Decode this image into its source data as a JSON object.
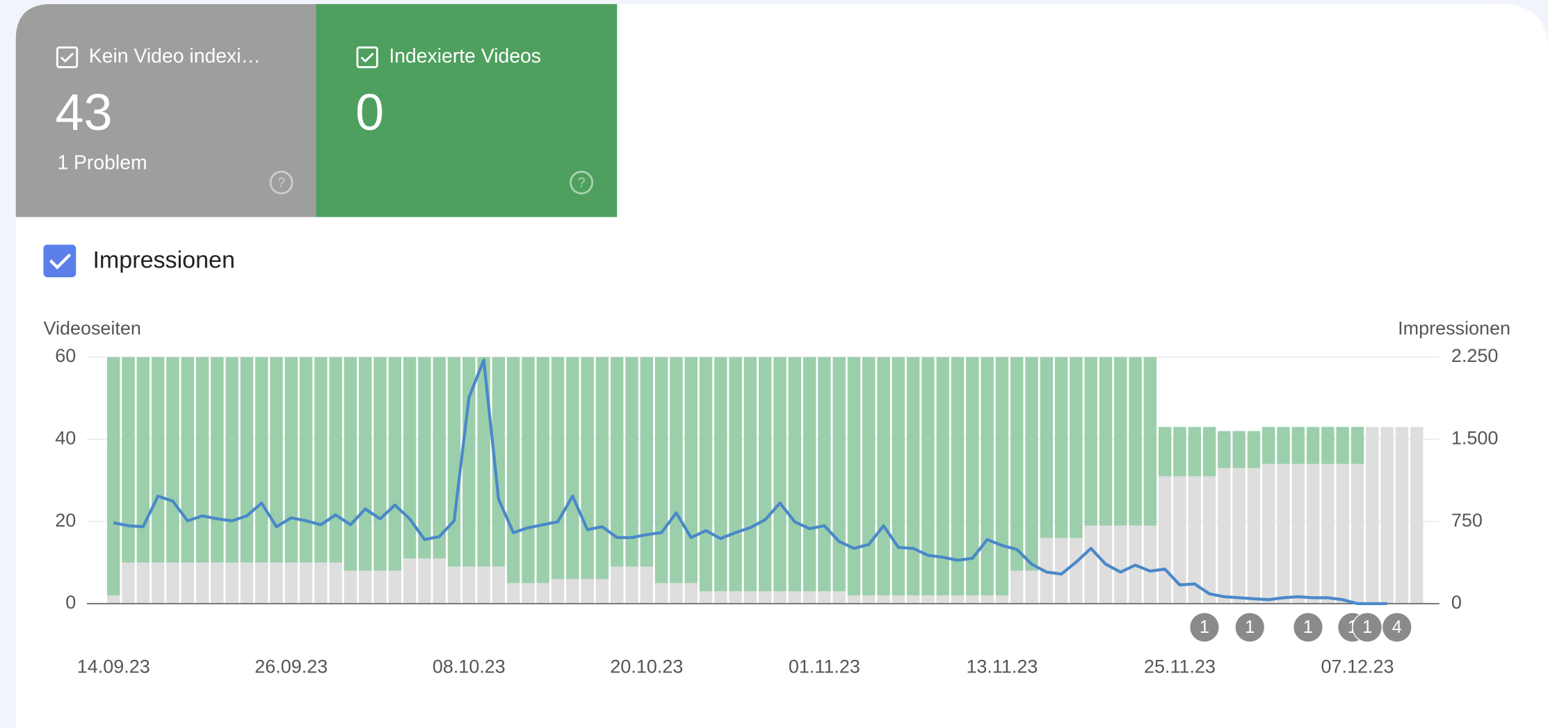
{
  "cards": [
    {
      "value": 43,
      "subtitle": "1 Problem"
    },
    {
      "value": 0
    }
  ],
  "chart_data": {
    "type": "bar",
    "stacked": true,
    "ylabel": "Videoseiten",
    "y2label": "Impressionen",
    "categories": [
      "14.09.23",
      null,
      null,
      null,
      null,
      null,
      null,
      null,
      null,
      null,
      null,
      null,
      "26.09.23",
      null,
      null,
      null,
      null,
      null,
      null,
      null,
      null,
      null,
      null,
      null,
      "08.10.23",
      null,
      null,
      null,
      null,
      null,
      null,
      null,
      null,
      null,
      null,
      null,
      "20.10.23",
      null,
      null,
      null,
      null,
      null,
      null,
      null,
      null,
      null,
      null,
      null,
      "01.11.23",
      null,
      null,
      null,
      null,
      null,
      null,
      null,
      null,
      null,
      null,
      null,
      "13.11.23",
      null,
      null,
      null,
      null,
      null,
      null,
      null,
      null,
      null,
      null,
      null,
      "25.11.23",
      null,
      null,
      null,
      null,
      null,
      null,
      null,
      null,
      null,
      null,
      null,
      "07.12.23",
      null,
      null,
      null,
      null
    ],
    "series": [
      {
        "name": "Kein Video indexi…",
        "color": "#dedede",
        "values": [
          2,
          10,
          10,
          10,
          10,
          10,
          10,
          10,
          10,
          10,
          10,
          10,
          10,
          10,
          10,
          10,
          8,
          8,
          8,
          8,
          11,
          11,
          11,
          9,
          9,
          9,
          9,
          5,
          5,
          5,
          6,
          6,
          6,
          6,
          9,
          9,
          9,
          5,
          5,
          5,
          3,
          3,
          3,
          3,
          3,
          3,
          3,
          3,
          3,
          3,
          2,
          2,
          2,
          2,
          2,
          2,
          2,
          2,
          2,
          2,
          2,
          8,
          8,
          16,
          16,
          16,
          19,
          19,
          19,
          19,
          19,
          31,
          31,
          31,
          31,
          33,
          33,
          33,
          34,
          34,
          34,
          34,
          34,
          34,
          34,
          43,
          43,
          43,
          43
        ]
      },
      {
        "name": "Indexierte Videos",
        "color": "#9bcfab",
        "values": [
          58,
          50,
          50,
          50,
          50,
          50,
          50,
          50,
          50,
          50,
          50,
          50,
          50,
          50,
          50,
          50,
          52,
          52,
          52,
          52,
          49,
          49,
          49,
          51,
          51,
          51,
          51,
          55,
          55,
          55,
          54,
          54,
          54,
          54,
          51,
          51,
          51,
          55,
          55,
          55,
          57,
          57,
          57,
          57,
          57,
          57,
          57,
          57,
          57,
          57,
          58,
          58,
          58,
          58,
          58,
          58,
          58,
          58,
          58,
          58,
          58,
          52,
          52,
          44,
          44,
          44,
          41,
          41,
          41,
          41,
          41,
          12,
          12,
          12,
          12,
          9,
          9,
          9,
          9,
          9,
          9,
          9,
          9,
          9,
          9,
          0,
          0,
          0,
          0
        ]
      },
      {
        "name": "Impressionen",
        "color": "#4a88c9",
        "type": "line",
        "axis": "y2",
        "values": [
          738,
          711,
          702,
          981,
          936,
          756,
          801,
          774,
          756,
          801,
          918,
          702,
          783,
          756,
          720,
          810,
          720,
          864,
          774,
          900,
          774,
          585,
          612,
          756,
          1881,
          2223,
          954,
          648,
          693,
          720,
          747,
          981,
          675,
          702,
          603,
          603,
          630,
          648,
          828,
          603,
          666,
          594,
          648,
          693,
          765,
          918,
          747,
          684,
          711,
          567,
          504,
          540,
          711,
          513,
          504,
          441,
          423,
          396,
          414,
          585,
          531,
          495,
          360,
          288,
          270,
          378,
          504,
          360,
          288,
          351,
          297,
          315,
          171,
          180,
          90,
          63,
          54,
          45,
          36,
          54,
          63,
          54,
          54,
          36,
          0,
          0,
          0,
          null,
          null
        ]
      }
    ],
    "ylim": [
      0,
      60
    ],
    "yticks": [
      0,
      20,
      40,
      60
    ],
    "y2lim": [
      0,
      2250
    ],
    "y2ticks": [
      0,
      750,
      {
        "value": 1500,
        "label": "1.500"
      },
      {
        "value": 2250,
        "label": "2.250"
      }
    ],
    "grid": true,
    "annotations": [
      "1",
      "1",
      "1",
      "1",
      "1",
      "4"
    ]
  }
}
